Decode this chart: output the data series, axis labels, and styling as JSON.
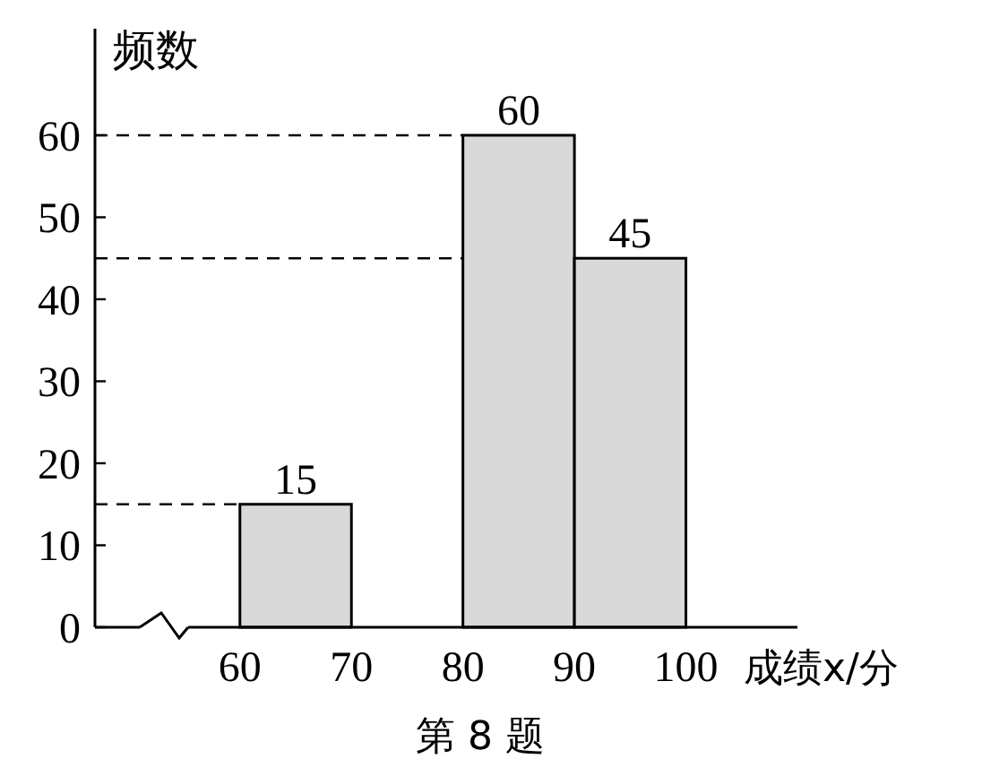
{
  "chart_data": {
    "type": "histogram",
    "ylabel": "频数",
    "xlabel": "成绩x/分",
    "bins": [
      60,
      70,
      80,
      90,
      100
    ],
    "values": [
      15,
      null,
      60,
      45
    ],
    "color": "#d9d9d9",
    "xlim": [
      47,
      110
    ],
    "xticks": [
      60,
      70,
      80,
      90,
      100
    ],
    "ylim": [
      0,
      73
    ],
    "yticks": [
      0,
      10,
      20,
      30,
      40,
      50,
      60
    ],
    "data_labels": true,
    "ref_lines": [
      {
        "axis": "y",
        "value": 60,
        "line_style": "dashed",
        "color": "#000000"
      },
      {
        "axis": "y",
        "value": 45,
        "line_style": "dashed",
        "color": "#000000"
      },
      {
        "axis": "y",
        "value": 15,
        "line_style": "dashed",
        "color": "#000000"
      }
    ],
    "annotations": [
      "第 8 题"
    ]
  }
}
